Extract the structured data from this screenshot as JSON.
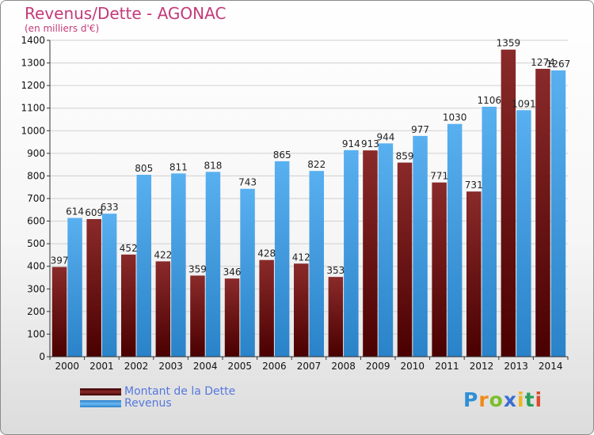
{
  "header": {
    "title": "Revenus/Dette - AGONAC",
    "subtitle": "(en milliers d'€)"
  },
  "chart_data": {
    "type": "bar",
    "title": "Revenus/Dette - AGONAC",
    "subtitle": "(en milliers d'€)",
    "categories": [
      "2000",
      "2001",
      "2002",
      "2003",
      "2004",
      "2005",
      "2006",
      "2007",
      "2008",
      "2009",
      "2010",
      "2011",
      "2012",
      "2013",
      "2014"
    ],
    "series": [
      {
        "name": "Montant de la Dette",
        "color": "#7a1e1e",
        "values": [
          397,
          609,
          452,
          422,
          359,
          346,
          428,
          412,
          353,
          913,
          859,
          771,
          731,
          1359,
          1274
        ]
      },
      {
        "name": "Revenus",
        "color": "#4aa3e6",
        "values": [
          614,
          633,
          805,
          811,
          818,
          743,
          865,
          822,
          914,
          944,
          977,
          1030,
          1106,
          1091,
          1267
        ]
      }
    ],
    "ylim": [
      0,
      1400
    ],
    "yticks": [
      0,
      100,
      200,
      300,
      400,
      500,
      600,
      700,
      800,
      900,
      1000,
      1100,
      1200,
      1300,
      1400
    ],
    "grid": true,
    "legend": "bottom-left"
  },
  "legend": {
    "items": [
      {
        "label": "Montant de la Dette",
        "color": "#7a1e1e"
      },
      {
        "label": "Revenus",
        "color": "#4aa3e6"
      }
    ]
  },
  "logo": {
    "letters": [
      "P",
      "r",
      "o",
      "x",
      "i",
      "t",
      "i"
    ],
    "colors": [
      "#2f8fd6",
      "#f08a1a",
      "#7abf2a",
      "#3b6ed0",
      "#f0b51a",
      "#2aa05a",
      "#e04a2a"
    ]
  }
}
